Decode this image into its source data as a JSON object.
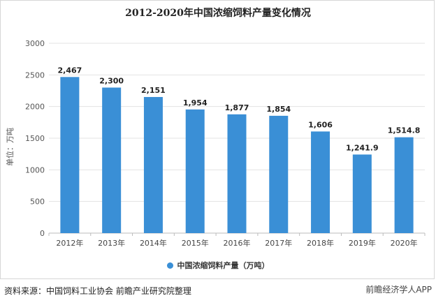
{
  "chart_data": {
    "type": "bar",
    "title": "2012-2020年中国浓缩饲料产量变化情况",
    "ylabel": "单位：万吨",
    "xlabel": "",
    "categories": [
      "2012年",
      "2013年",
      "2014年",
      "2015年",
      "2016年",
      "2017年",
      "2018年",
      "2019年",
      "2020年"
    ],
    "series": [
      {
        "name": "中国浓缩饲料产量（万吨）",
        "values": [
          2467,
          2300,
          2151,
          1954,
          1877,
          1854,
          1606,
          1241.9,
          1514.8
        ]
      }
    ],
    "data_labels": [
      "2,467",
      "2,300",
      "2,151",
      "1,954",
      "1,877",
      "1,854",
      "1,606",
      "1,241.9",
      "1,514.8"
    ],
    "yticks": [
      "0",
      "500",
      "1000",
      "1500",
      "2000",
      "2500",
      "3000"
    ],
    "ylim": [
      0,
      3000
    ],
    "grid": true,
    "legend_position": "bottom",
    "bar_color": "#3a8fd6"
  },
  "footer": {
    "source": "资料来源：中国饲料工业协会 前瞻产业研究院整理",
    "watermark": "前瞻经济学人APP"
  }
}
